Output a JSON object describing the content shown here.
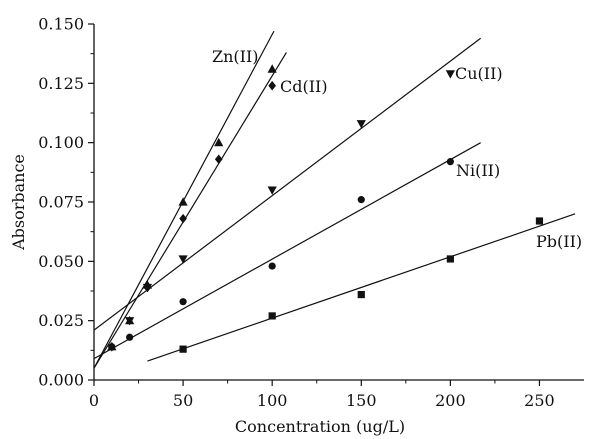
{
  "chart_data": {
    "type": "scatter",
    "xlabel": "Concentration (ug/L)",
    "ylabel": "Absorbance",
    "xlim": [
      0,
      275
    ],
    "ylim": [
      0,
      0.15
    ],
    "x_ticks": [
      0,
      50,
      100,
      150,
      200,
      250
    ],
    "x_tick_labels": [
      "0",
      "50",
      "100",
      "150",
      "200",
      "250"
    ],
    "y_ticks": [
      0,
      0.025,
      0.05,
      0.075,
      0.1,
      0.125,
      0.15
    ],
    "y_tick_labels": [
      "0.000",
      "0.025",
      "0.050",
      "0.075",
      "0.100",
      "0.125",
      "0.150"
    ],
    "grid": false,
    "series": [
      {
        "name": "Zn(II)",
        "marker": "triangle-up",
        "points": [
          [
            10,
            0.014
          ],
          [
            20,
            0.025
          ],
          [
            30,
            0.04
          ],
          [
            50,
            0.075
          ],
          [
            70,
            0.1
          ],
          [
            100,
            0.131
          ]
        ],
        "fit": [
          [
            0,
            0.005
          ],
          [
            101,
            0.147
          ]
        ]
      },
      {
        "name": "Cd(II)",
        "marker": "diamond",
        "points": [
          [
            10,
            0.014
          ],
          [
            30,
            0.039
          ],
          [
            50,
            0.068
          ],
          [
            70,
            0.093
          ],
          [
            100,
            0.124
          ]
        ],
        "fit": [
          [
            0,
            0.005
          ],
          [
            108,
            0.138
          ]
        ]
      },
      {
        "name": "Cu(II)",
        "marker": "triangle-down",
        "points": [
          [
            20,
            0.025
          ],
          [
            30,
            0.039
          ],
          [
            50,
            0.051
          ],
          [
            100,
            0.08
          ],
          [
            150,
            0.108
          ],
          [
            200,
            0.129
          ]
        ],
        "fit": [
          [
            0,
            0.021
          ],
          [
            217,
            0.144
          ]
        ]
      },
      {
        "name": "Ni(II)",
        "marker": "circle",
        "points": [
          [
            10,
            0.014
          ],
          [
            20,
            0.018
          ],
          [
            50,
            0.033
          ],
          [
            100,
            0.048
          ],
          [
            150,
            0.076
          ],
          [
            200,
            0.092
          ]
        ],
        "fit": [
          [
            0,
            0.009
          ],
          [
            217,
            0.1
          ]
        ]
      },
      {
        "name": "Pb(II)",
        "marker": "square",
        "points": [
          [
            50,
            0.013
          ],
          [
            100,
            0.027
          ],
          [
            150,
            0.036
          ],
          [
            200,
            0.051
          ],
          [
            250,
            0.067
          ]
        ],
        "fit": [
          [
            30,
            0.008
          ],
          [
            270,
            0.07
          ]
        ]
      }
    ]
  }
}
